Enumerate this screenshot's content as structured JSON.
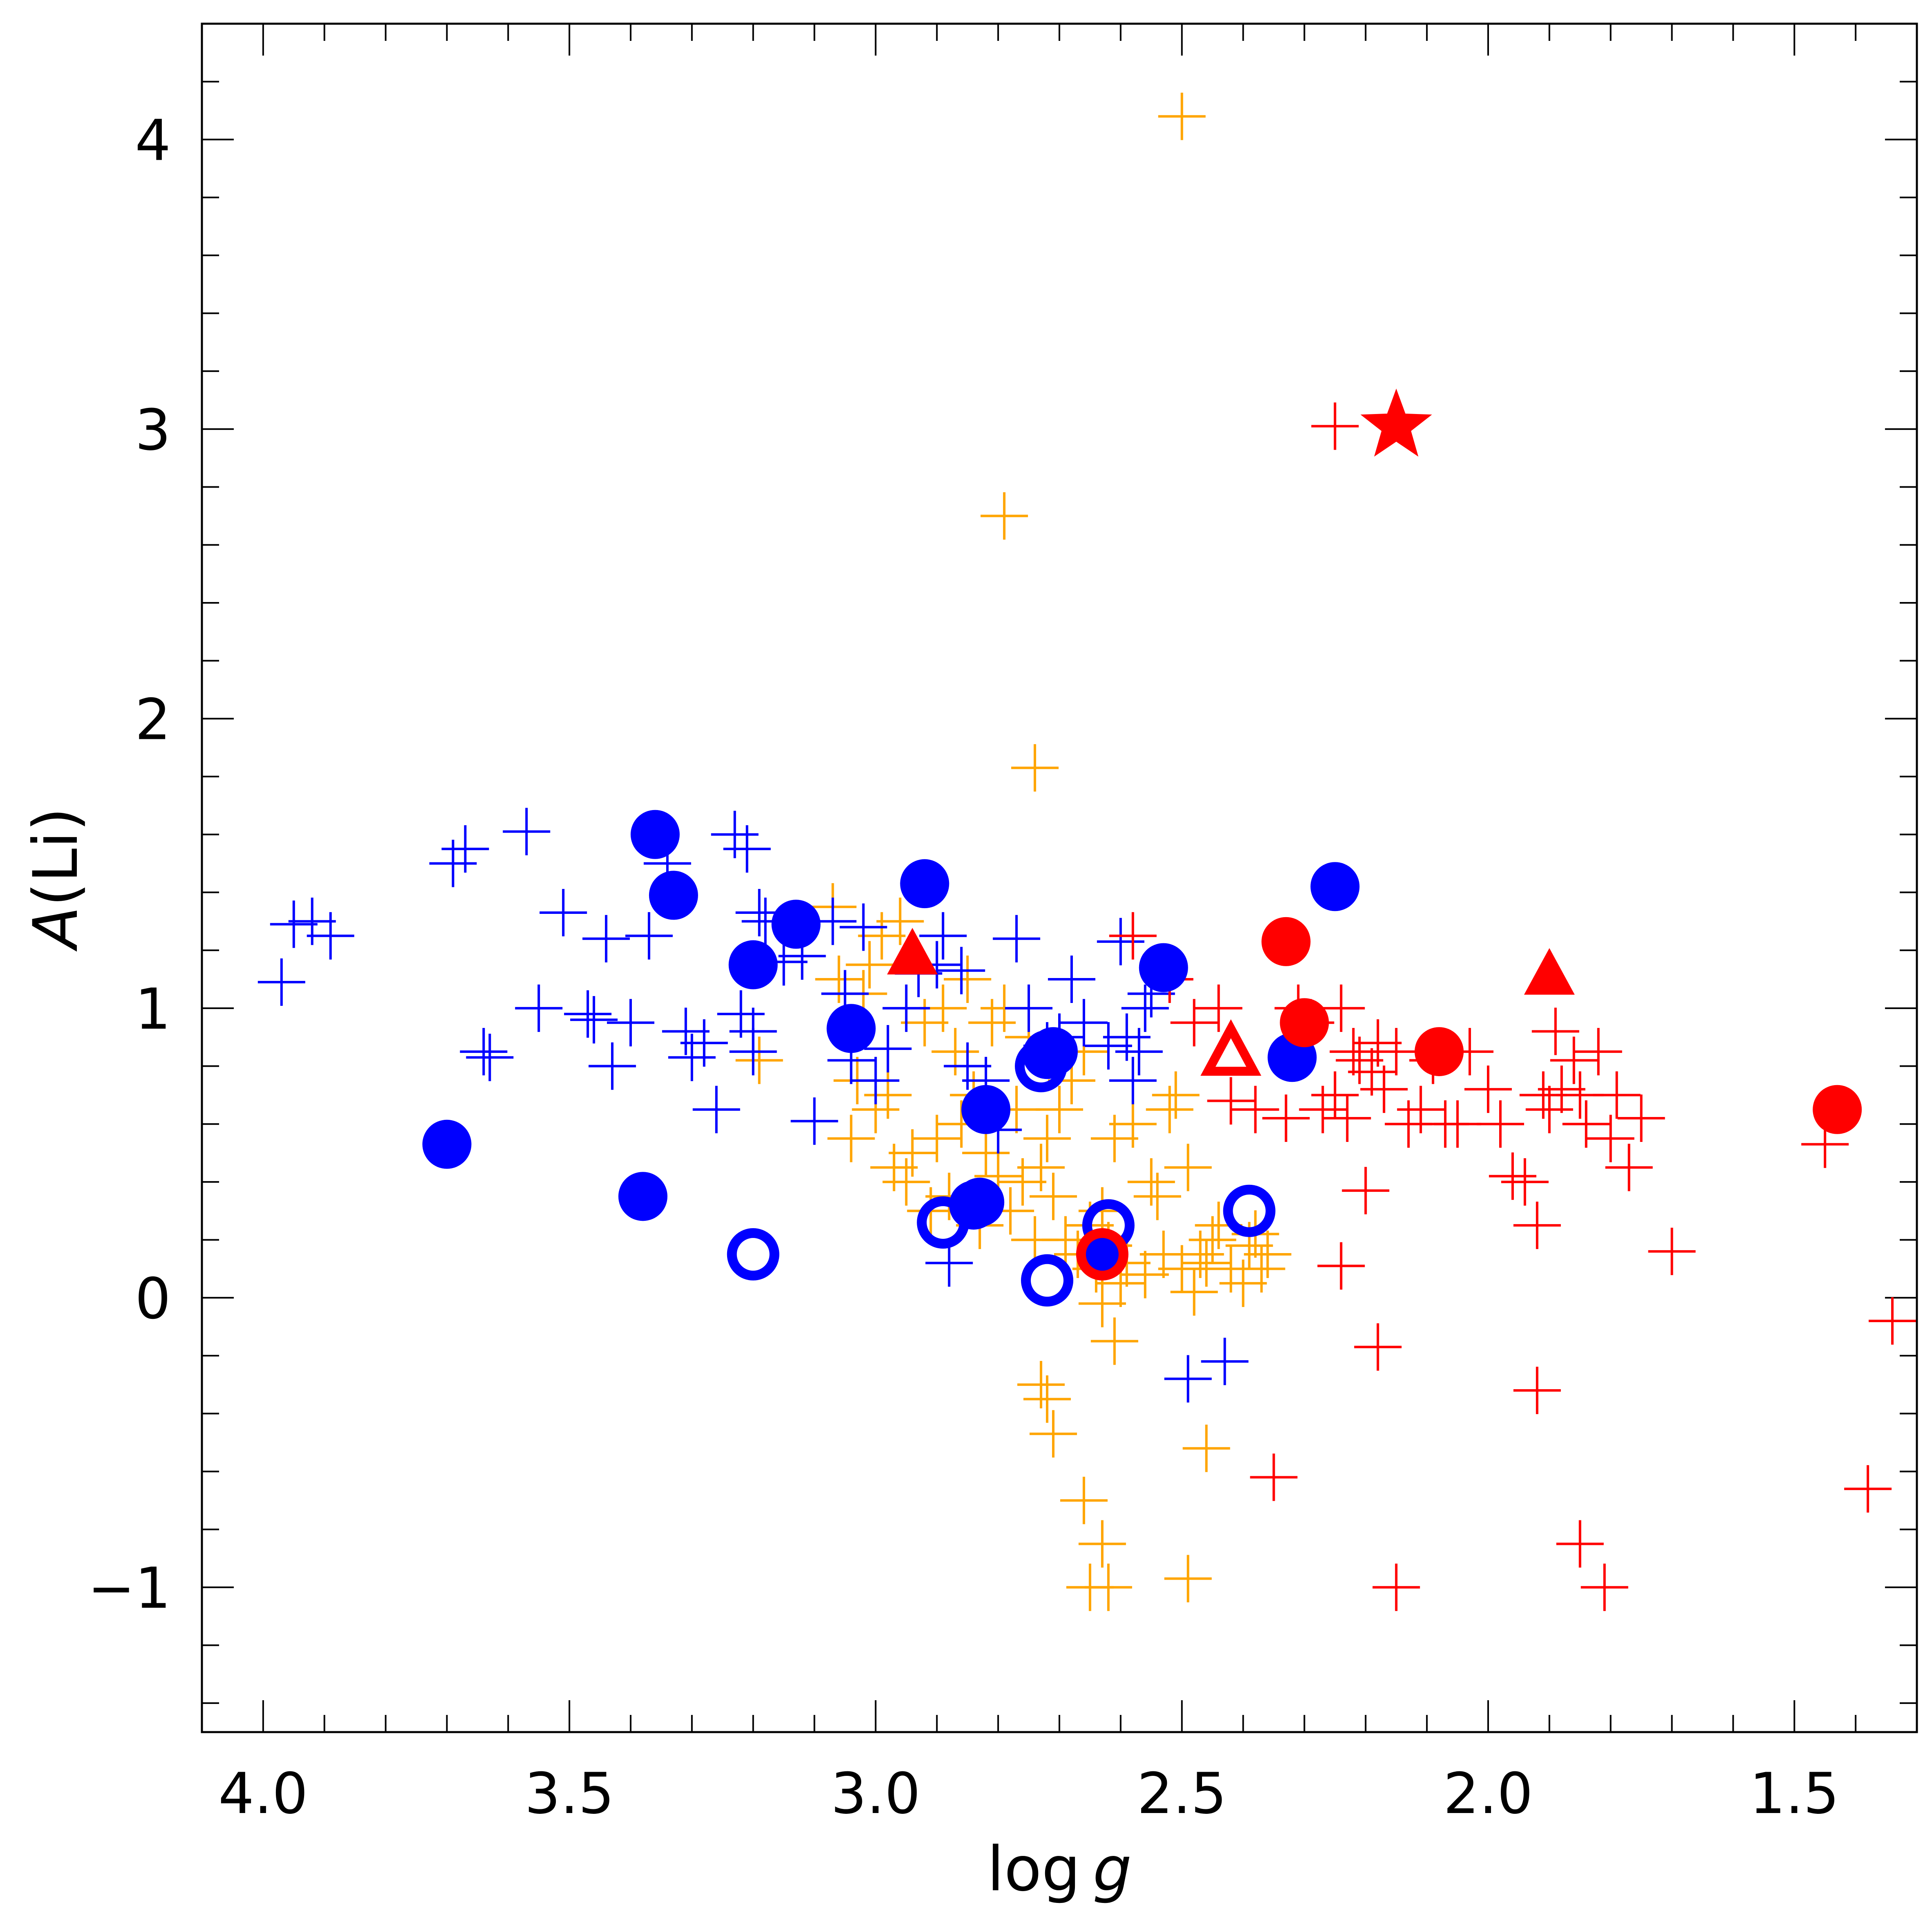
{
  "chart_data": {
    "type": "scatter",
    "title": "",
    "xlabel": "log g",
    "xlabel_main": "log",
    "xlabel_var": "g",
    "ylabel": "A(Li)",
    "ylabel_var": "A",
    "ylabel_rest": "(Li)",
    "xlim": [
      4.1,
      1.3
    ],
    "ylim": [
      -1.5,
      4.4
    ],
    "x_inverted": true,
    "x_ticks": [
      {
        "value": 4.0,
        "label": "4.0"
      },
      {
        "value": 3.5,
        "label": "3.5"
      },
      {
        "value": 3.0,
        "label": "3.0"
      },
      {
        "value": 2.5,
        "label": "2.5"
      },
      {
        "value": 2.0,
        "label": "2.0"
      },
      {
        "value": 1.5,
        "label": "1.5"
      }
    ],
    "y_ticks": [
      {
        "value": -1,
        "label": "−1"
      },
      {
        "value": 0,
        "label": "0"
      },
      {
        "value": 1,
        "label": "1"
      },
      {
        "value": 2,
        "label": "2"
      },
      {
        "value": 3,
        "label": "3"
      },
      {
        "value": 4,
        "label": "4"
      }
    ],
    "x_minor_step": 0.1,
    "y_minor_step": 0.2,
    "grid": false,
    "legend": "none",
    "colors": {
      "blue": "#0000ff",
      "orange": "#ffa500",
      "red": "#ff0000",
      "axis": "#000000"
    },
    "series": [
      {
        "name": "blue-plus",
        "marker": "plus",
        "color": "#0000ff",
        "x": [
          3.97,
          3.95,
          3.92,
          3.89,
          3.69,
          3.67,
          3.64,
          3.63,
          3.57,
          3.55,
          3.51,
          3.47,
          3.46,
          3.44,
          3.43,
          3.4,
          3.37,
          3.34,
          3.31,
          3.3,
          3.28,
          3.26,
          3.23,
          3.21,
          3.22,
          3.2,
          3.2,
          3.19,
          3.18,
          3.15,
          3.12,
          3.1,
          3.07,
          3.05,
          3.04,
          3.02,
          3.0,
          2.98,
          2.95,
          2.93,
          2.9,
          2.89,
          2.86,
          2.85,
          2.82,
          2.8,
          2.77,
          2.75,
          2.72,
          2.7,
          2.68,
          2.66,
          2.62,
          2.6,
          2.59,
          2.58,
          2.57,
          2.56,
          2.55,
          2.49,
          2.43,
          2.88
        ],
        "y": [
          1.09,
          1.29,
          1.3,
          1.25,
          1.5,
          1.55,
          0.85,
          0.83,
          1.61,
          1.0,
          1.33,
          0.98,
          0.96,
          1.24,
          0.8,
          0.95,
          1.25,
          1.5,
          0.92,
          0.83,
          0.88,
          0.65,
          1.6,
          1.55,
          0.98,
          0.92,
          0.85,
          1.33,
          1.3,
          1.16,
          1.18,
          0.61,
          1.3,
          1.05,
          0.82,
          1.28,
          0.75,
          0.86,
          1.0,
          1.12,
          1.15,
          1.25,
          1.13,
          0.8,
          0.75,
          0.58,
          1.24,
          1.0,
          0.87,
          0.9,
          1.1,
          0.95,
          0.87,
          1.23,
          0.9,
          0.75,
          0.85,
          1.0,
          1.05,
          -0.28,
          -0.22,
          0.12
        ]
      },
      {
        "name": "orange-plus",
        "marker": "plus",
        "color": "#ffa500",
        "x": [
          2.5,
          2.79,
          2.74,
          3.19,
          3.07,
          3.06,
          3.04,
          3.03,
          3.02,
          3.01,
          3.0,
          2.99,
          2.98,
          2.97,
          2.96,
          2.95,
          2.94,
          2.92,
          2.91,
          2.9,
          2.89,
          2.88,
          2.87,
          2.86,
          2.85,
          2.84,
          2.83,
          2.82,
          2.81,
          2.8,
          2.79,
          2.78,
          2.77,
          2.76,
          2.75,
          2.74,
          2.73,
          2.72,
          2.71,
          2.7,
          2.69,
          2.68,
          2.67,
          2.66,
          2.65,
          2.64,
          2.63,
          2.62,
          2.61,
          2.6,
          2.59,
          2.58,
          2.56,
          2.55,
          2.54,
          2.53,
          2.52,
          2.51,
          2.5,
          2.49,
          2.48,
          2.47,
          2.46,
          2.45,
          2.44,
          2.42,
          2.4,
          2.39,
          2.38,
          2.37,
          2.36,
          2.73,
          2.72,
          2.71,
          2.66,
          2.63,
          2.62,
          2.61,
          2.49,
          2.46,
          2.65,
          2.63
        ],
        "y": [
          4.08,
          2.7,
          1.83,
          0.82,
          1.35,
          1.1,
          0.55,
          0.75,
          1.05,
          1.15,
          0.65,
          1.25,
          0.7,
          0.45,
          1.3,
          0.4,
          0.5,
          0.95,
          0.3,
          0.55,
          1.0,
          0.35,
          0.85,
          0.6,
          1.1,
          0.7,
          0.25,
          0.5,
          0.95,
          0.42,
          1.0,
          0.3,
          0.65,
          0.4,
          0.9,
          0.2,
          0.45,
          0.55,
          0.35,
          0.65,
          0.2,
          0.75,
          0.15,
          0.85,
          0.25,
          0.1,
          0.3,
          0.18,
          0.55,
          0.05,
          0.12,
          0.6,
          0.08,
          0.4,
          0.35,
          0.15,
          0.65,
          0.7,
          0.1,
          0.45,
          0.02,
          0.15,
          0.12,
          0.2,
          0.25,
          0.1,
          0.05,
          0.18,
          0.22,
          0.1,
          0.15,
          -0.3,
          -0.35,
          -0.47,
          -0.7,
          -0.85,
          -1.0,
          -0.15,
          -0.97,
          -0.52,
          -1.0,
          -0.02
        ]
      },
      {
        "name": "red-plus",
        "marker": "plus",
        "color": "#ff0000",
        "x": [
          2.25,
          2.58,
          2.52,
          2.48,
          2.44,
          2.42,
          2.38,
          2.33,
          2.31,
          2.29,
          2.27,
          2.25,
          2.24,
          2.23,
          2.22,
          2.21,
          2.2,
          2.19,
          2.18,
          2.17,
          2.15,
          2.13,
          2.11,
          2.09,
          2.07,
          2.05,
          2.03,
          2.0,
          1.98,
          1.96,
          1.94,
          1.92,
          1.91,
          1.9,
          1.89,
          1.88,
          1.86,
          1.85,
          1.84,
          1.82,
          1.8,
          1.79,
          1.77,
          1.75,
          1.7,
          1.45,
          1.38,
          1.34,
          2.18,
          2.15,
          1.81,
          1.85,
          1.92,
          2.35,
          2.24
        ],
        "y": [
          3.01,
          1.25,
          1.1,
          0.95,
          1.0,
          0.68,
          0.65,
          0.62,
          1.0,
          0.95,
          0.65,
          0.7,
          1.0,
          0.62,
          0.85,
          0.82,
          0.37,
          0.78,
          0.88,
          0.72,
          0.85,
          0.6,
          0.65,
          0.82,
          0.6,
          0.6,
          0.85,
          0.72,
          0.6,
          0.42,
          0.4,
          0.25,
          0.7,
          0.65,
          0.92,
          0.72,
          0.82,
          0.7,
          0.6,
          0.85,
          0.55,
          0.7,
          0.45,
          0.62,
          0.16,
          0.53,
          -0.66,
          -0.08,
          -0.17,
          -1.0,
          -1.0,
          -0.85,
          -0.32,
          -0.62,
          0.11
        ]
      },
      {
        "name": "blue-filled-circle",
        "marker": "filled-circle",
        "color": "#0000ff",
        "x": [
          3.36,
          3.33,
          3.2,
          3.13,
          3.04,
          2.92,
          2.82,
          2.84,
          2.83,
          2.71,
          2.72,
          2.53,
          2.32,
          2.25,
          3.7,
          3.38,
          2.63
        ],
        "y": [
          1.6,
          1.39,
          1.15,
          1.29,
          0.93,
          1.43,
          0.65,
          0.32,
          0.33,
          0.85,
          0.84,
          1.14,
          0.83,
          1.42,
          0.53,
          0.35,
          0.15
        ]
      },
      {
        "name": "blue-open-circle",
        "marker": "open-circle",
        "color": "#0000ff",
        "x": [
          3.2,
          2.89,
          2.72,
          2.62,
          2.39,
          2.73
        ],
        "y": [
          0.15,
          0.26,
          0.06,
          0.25,
          0.3,
          0.8
        ]
      },
      {
        "name": "red-filled-circle",
        "marker": "filled-circle",
        "color": "#ff0000",
        "x": [
          2.33,
          2.3,
          2.08,
          1.43
        ],
        "y": [
          1.23,
          0.95,
          0.85,
          0.65
        ]
      },
      {
        "name": "red-ring-on-blue",
        "marker": "open-circle",
        "color": "#ff0000",
        "x": [
          2.63
        ],
        "y": [
          0.15
        ]
      },
      {
        "name": "red-filled-triangle",
        "marker": "filled-triangle",
        "color": "#ff0000",
        "x": [
          2.94,
          1.9
        ],
        "y": [
          1.19,
          1.12
        ]
      },
      {
        "name": "red-open-triangle",
        "marker": "open-triangle",
        "color": "#ff0000",
        "x": [
          2.42
        ],
        "y": [
          0.85
        ]
      },
      {
        "name": "red-star",
        "marker": "star",
        "color": "#ff0000",
        "x": [
          2.15
        ],
        "y": [
          3.01
        ]
      }
    ]
  }
}
